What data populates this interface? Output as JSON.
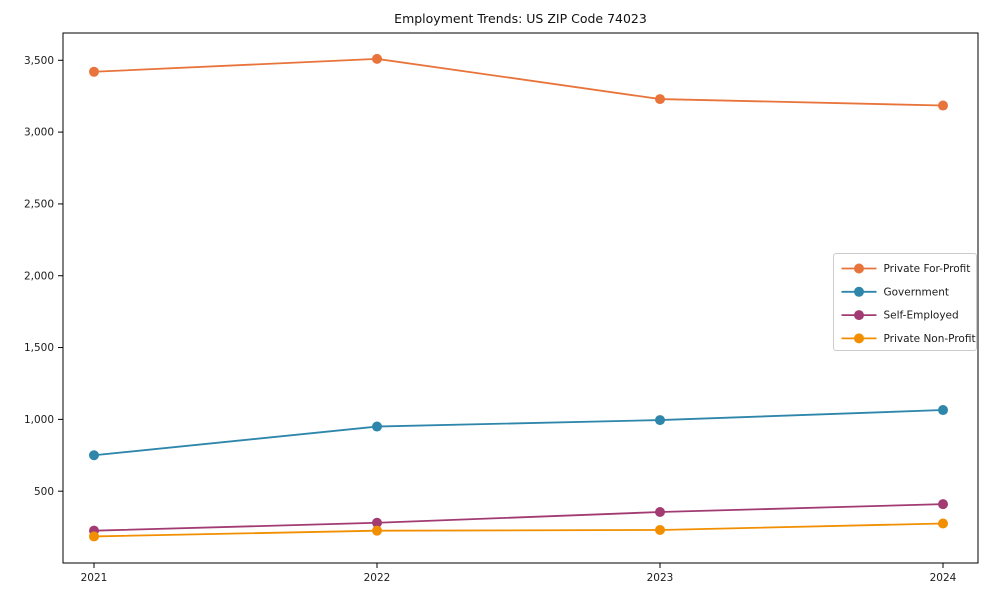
{
  "chart_data": {
    "type": "line",
    "title": "Employment Trends: US ZIP Code 74023",
    "x": [
      2021,
      2022,
      2023,
      2024
    ],
    "x_tick_labels": [
      "2021",
      "2022",
      "2023",
      "2024"
    ],
    "series": [
      {
        "name": "Private For-Profit",
        "color": "#E8743B",
        "values": [
          3420,
          3510,
          3230,
          3185
        ]
      },
      {
        "name": "Government",
        "color": "#2E86AB",
        "values": [
          750,
          950,
          995,
          1065
        ]
      },
      {
        "name": "Self-Employed",
        "color": "#A23B72",
        "values": [
          225,
          280,
          355,
          410
        ]
      },
      {
        "name": "Private Non-Profit",
        "color": "#F18F01",
        "values": [
          185,
          225,
          230,
          275
        ]
      }
    ],
    "xlabel": "",
    "ylabel": "",
    "ylim": [
      0,
      3690
    ],
    "yticks": [
      500,
      1000,
      1500,
      2000,
      2500,
      3000,
      3500
    ],
    "y_tick_labels": [
      "500",
      "1,000",
      "1,500",
      "2,000",
      "2,500",
      "3,000",
      "3,500"
    ],
    "grid": false,
    "legend_position": "center-right",
    "marker": "circle",
    "colors": {
      "axis": "#000000",
      "tick_text": "#1c1c1c",
      "legend_border": "#cccccc",
      "background": "#ffffff"
    }
  }
}
